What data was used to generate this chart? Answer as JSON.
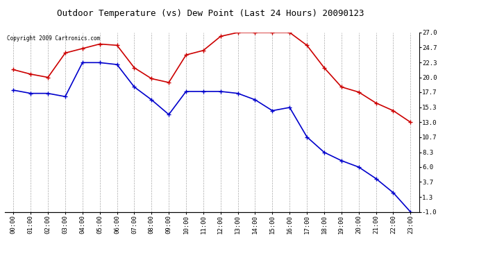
{
  "title": "Outdoor Temperature (vs) Dew Point (Last 24 Hours) 20090123",
  "copyright": "Copyright 2009 Cartronics.com",
  "hours": [
    "00:00",
    "01:00",
    "02:00",
    "03:00",
    "04:00",
    "05:00",
    "06:00",
    "07:00",
    "08:00",
    "09:00",
    "10:00",
    "11:00",
    "12:00",
    "13:00",
    "14:00",
    "15:00",
    "16:00",
    "17:00",
    "18:00",
    "19:00",
    "20:00",
    "21:00",
    "22:00",
    "23:00"
  ],
  "temp_data": [
    21.2,
    20.5,
    20.0,
    23.8,
    24.5,
    25.2,
    25.0,
    21.5,
    19.8,
    19.2,
    23.5,
    24.2,
    26.4,
    27.0,
    27.0,
    27.0,
    27.0,
    25.0,
    21.5,
    18.5,
    17.7,
    16.0,
    14.8,
    13.0
  ],
  "dew_data": [
    18.0,
    17.5,
    17.5,
    17.0,
    22.3,
    22.3,
    22.0,
    18.5,
    16.5,
    14.2,
    17.8,
    17.8,
    17.8,
    17.5,
    16.5,
    14.8,
    15.3,
    10.7,
    8.3,
    7.0,
    6.0,
    4.2,
    2.0,
    -1.0
  ],
  "temp_color": "#cc0000",
  "dew_color": "#0000cc",
  "bg_color": "#ffffff",
  "grid_color": "#aaaaaa",
  "yticks": [
    27.0,
    24.7,
    22.3,
    20.0,
    17.7,
    15.3,
    13.0,
    10.7,
    8.3,
    6.0,
    3.7,
    1.3,
    -1.0
  ],
  "ylim": [
    -1.0,
    27.0
  ],
  "title_fontsize": 9,
  "tick_fontsize": 6.5,
  "copyright_fontsize": 5.5
}
